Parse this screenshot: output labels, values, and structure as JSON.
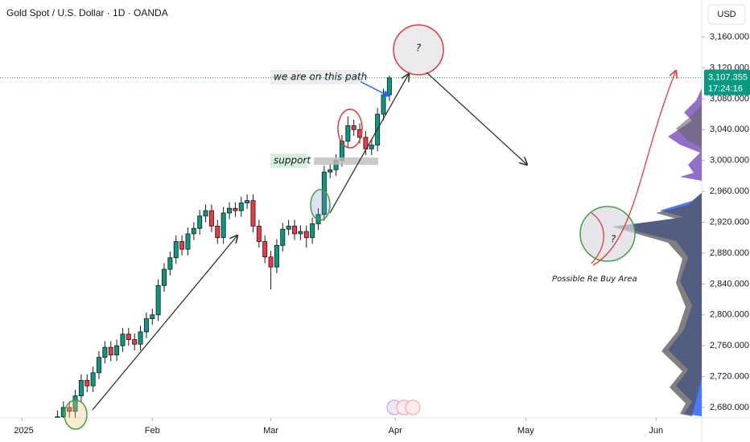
{
  "chart_data": {
    "type": "candlestick",
    "title": "Gold Spot / U.S. Dollar · 1D · OANDA",
    "currency": "USD",
    "up_color": "#089981",
    "down_color": "#f23645",
    "x": [
      6,
      7,
      8,
      9,
      10,
      11,
      12,
      13,
      14,
      15,
      16,
      17,
      18,
      19,
      20,
      21,
      22,
      23,
      24,
      25,
      26,
      27,
      28,
      29,
      30,
      31,
      32,
      33,
      34,
      35,
      36,
      37,
      38,
      39,
      40,
      41,
      42,
      43,
      44,
      45,
      46,
      47,
      48,
      49,
      50,
      51,
      52,
      53,
      54,
      55,
      56,
      57,
      58,
      59,
      60,
      61,
      62
    ],
    "open": [
      2655,
      2668,
      2680,
      2675,
      2695,
      2715,
      2708,
      2725,
      2745,
      2758,
      2748,
      2760,
      2775,
      2768,
      2762,
      2778,
      2795,
      2800,
      2838,
      2859,
      2874,
      2895,
      2885,
      2905,
      2912,
      2928,
      2935,
      2915,
      2900,
      2932,
      2938,
      2935,
      2945,
      2948,
      2915,
      2895,
      2875,
      2862,
      2890,
      2911,
      2915,
      2905,
      2908,
      2900,
      2918,
      2930,
      2985,
      2988,
      3000,
      3025,
      3045,
      3040,
      3030,
      3015,
      3020,
      3060,
      3085
    ],
    "high": [
      2676,
      2688,
      2688,
      2703,
      2723,
      2723,
      2733,
      2753,
      2766,
      2766,
      2768,
      2783,
      2783,
      2776,
      2786,
      2803,
      2808,
      2846,
      2867,
      2882,
      2903,
      2903,
      2913,
      2920,
      2936,
      2943,
      2943,
      2923,
      2940,
      2946,
      2946,
      2953,
      2956,
      2956,
      2923,
      2903,
      2883,
      2898,
      2919,
      2923,
      2923,
      2916,
      2916,
      2926,
      2938,
      2993,
      2996,
      3008,
      3033,
      3057,
      3053,
      3048,
      3038,
      3028,
      3068,
      3093,
      3110
    ],
    "low": [
      2640,
      2660,
      2667,
      2667,
      2687,
      2700,
      2700,
      2717,
      2737,
      2740,
      2740,
      2752,
      2760,
      2754,
      2754,
      2770,
      2787,
      2792,
      2830,
      2851,
      2866,
      2877,
      2877,
      2897,
      2904,
      2920,
      2907,
      2892,
      2892,
      2924,
      2927,
      2927,
      2937,
      2907,
      2887,
      2867,
      2833,
      2854,
      2882,
      2903,
      2897,
      2897,
      2887,
      2892,
      2910,
      2922,
      2977,
      2980,
      2992,
      3017,
      3032,
      3022,
      3007,
      3007,
      3012,
      3052,
      3077
    ],
    "close": [
      2668,
      2680,
      2675,
      2695,
      2715,
      2708,
      2725,
      2745,
      2758,
      2748,
      2760,
      2775,
      2768,
      2762,
      2778,
      2795,
      2800,
      2838,
      2859,
      2874,
      2895,
      2885,
      2905,
      2912,
      2928,
      2935,
      2915,
      2900,
      2932,
      2938,
      2935,
      2945,
      2948,
      2915,
      2895,
      2875,
      2862,
      2890,
      2911,
      2915,
      2905,
      2908,
      2900,
      2918,
      2930,
      2985,
      2988,
      3000,
      3025,
      3045,
      3040,
      3030,
      3015,
      3020,
      3060,
      3085,
      3107
    ],
    "xlim": [
      -3.7,
      114.7
    ],
    "xticks": [
      {
        "value": 0,
        "label": "2025"
      },
      {
        "value": 22,
        "label": "Feb"
      },
      {
        "value": 42,
        "label": "Mar"
      },
      {
        "value": 63,
        "label": "Apr"
      },
      {
        "value": 85,
        "label": "May"
      },
      {
        "value": 107,
        "label": "Jun"
      }
    ],
    "ylim": [
      2666.5,
      3207.9
    ],
    "yticks": [
      {
        "value": 2680,
        "label": "2,680.000"
      },
      {
        "value": 2720,
        "label": "2,720.000"
      },
      {
        "value": 2760,
        "label": "2,760.000"
      },
      {
        "value": 2800,
        "label": "2,800.000"
      },
      {
        "value": 2840,
        "label": "2,840.000"
      },
      {
        "value": 2880,
        "label": "2,880.000"
      },
      {
        "value": 2920,
        "label": "2,920.000"
      },
      {
        "value": 2960,
        "label": "2,960.000"
      },
      {
        "value": 3000,
        "label": "3,000.000"
      },
      {
        "value": 3040,
        "label": "3,040.000"
      },
      {
        "value": 3080,
        "label": "3,080.000"
      },
      {
        "value": 3120,
        "label": "3,120.000"
      },
      {
        "value": 3160,
        "label": "3,160.000"
      }
    ],
    "last_price": {
      "value": 3107.355,
      "label": "3,107.355"
    },
    "countdown": "17:24:16",
    "annotations": [
      "we are on this path",
      "support",
      "?",
      "?",
      "Possible Re Buy Area"
    ]
  }
}
